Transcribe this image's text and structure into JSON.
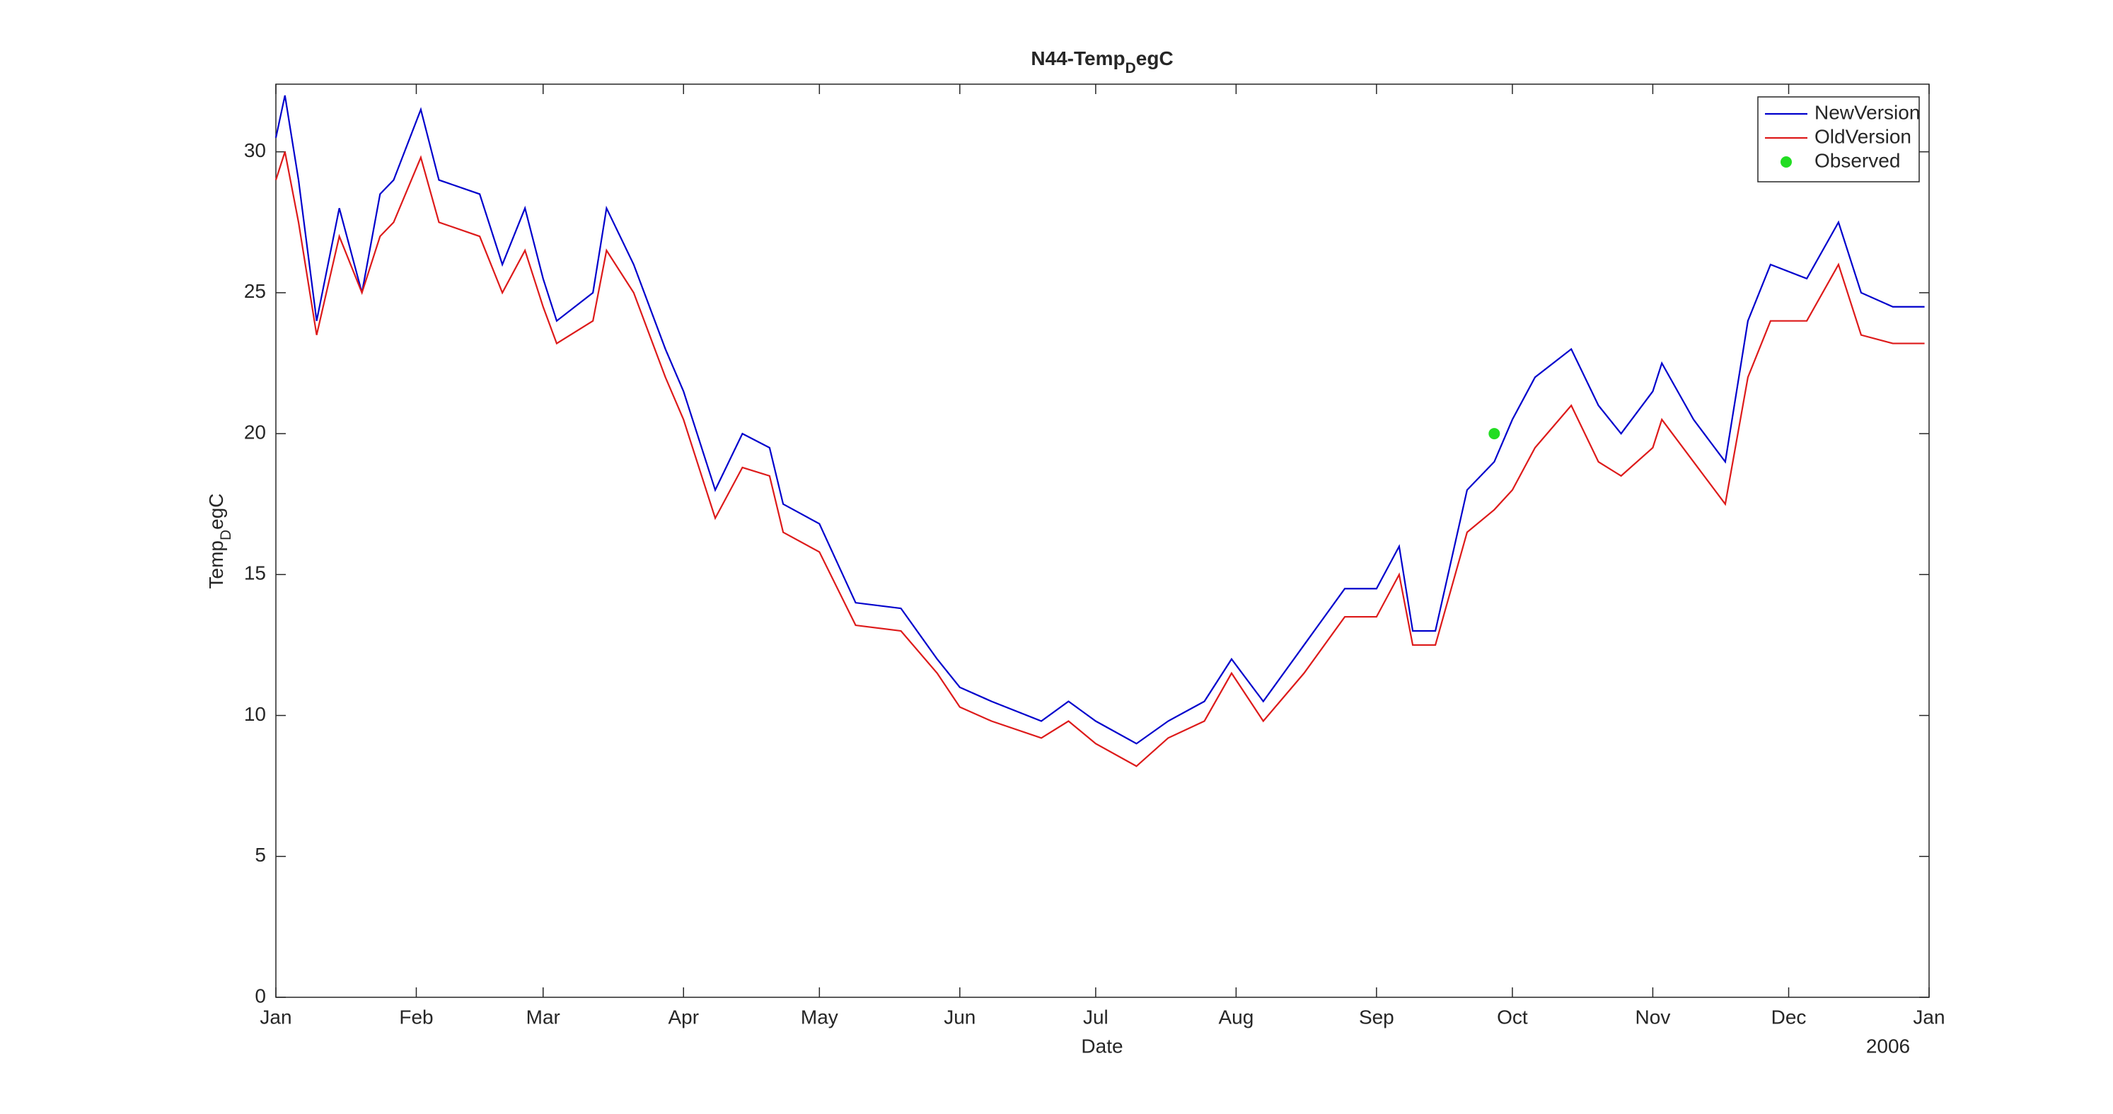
{
  "chart_data": {
    "type": "line",
    "title": [
      "N44-Temp",
      "D",
      "egC"
    ],
    "xlabel": "Date",
    "ylabel": [
      "Temp",
      "D",
      "egC"
    ],
    "annotation": "2006",
    "x": [
      0,
      2,
      5,
      9,
      14,
      19,
      23,
      26,
      32,
      36,
      45,
      50,
      55,
      59,
      62,
      70,
      73,
      79,
      86,
      90,
      97,
      103,
      109,
      112,
      120,
      128,
      138,
      146,
      151,
      158,
      169,
      175,
      181,
      190,
      197,
      205,
      211,
      218,
      227,
      236,
      243,
      248,
      251,
      256,
      263,
      269,
      273,
      278,
      286,
      292,
      297,
      304,
      306,
      313,
      320,
      325,
      330,
      338,
      345,
      350,
      357,
      364
    ],
    "series": [
      {
        "name": "NewVersion",
        "color": "#0000cc",
        "values": [
          30.5,
          32,
          29,
          24,
          28,
          25,
          28.5,
          29,
          31.5,
          29,
          28.5,
          26,
          28,
          25.5,
          24,
          25,
          28,
          26,
          23,
          21.5,
          18,
          20,
          19.5,
          17.5,
          16.8,
          14,
          13.8,
          12,
          11,
          10.5,
          9.8,
          10.5,
          9.8,
          9,
          9.8,
          10.5,
          12,
          10.5,
          12.5,
          14.5,
          14.5,
          16,
          13,
          13,
          18,
          19,
          20.5,
          22,
          23,
          21,
          20,
          21.5,
          22.5,
          20.5,
          19,
          24,
          26,
          25.5,
          27.5,
          25,
          24.5,
          24.5
        ]
      },
      {
        "name": "OldVersion",
        "color": "#dd1a1a",
        "values": [
          29,
          30,
          27.5,
          23.5,
          27,
          25,
          27,
          27.5,
          29.8,
          27.5,
          27,
          25,
          26.5,
          24.5,
          23.2,
          24,
          26.5,
          25,
          22,
          20.5,
          17,
          18.8,
          18.5,
          16.5,
          15.8,
          13.2,
          13,
          11.5,
          10.3,
          9.8,
          9.2,
          9.8,
          9,
          8.2,
          9.2,
          9.8,
          11.5,
          9.8,
          11.5,
          13.5,
          13.5,
          15,
          12.5,
          12.5,
          16.5,
          17.3,
          18,
          19.5,
          21,
          19,
          18.5,
          19.5,
          20.5,
          19,
          17.5,
          22,
          24,
          24,
          26,
          23.5,
          23.2,
          23.2
        ]
      }
    ],
    "observed": {
      "name": "Observed",
      "color": "#22dd22",
      "x": [
        269
      ],
      "values": [
        20
      ]
    },
    "xlim": [
      0,
      365
    ],
    "xticks": [
      {
        "value": 0,
        "label": "Jan"
      },
      {
        "value": 31,
        "label": "Feb"
      },
      {
        "value": 59,
        "label": "Mar"
      },
      {
        "value": 90,
        "label": "Apr"
      },
      {
        "value": 120,
        "label": "May"
      },
      {
        "value": 151,
        "label": "Jun"
      },
      {
        "value": 181,
        "label": "Jul"
      },
      {
        "value": 212,
        "label": "Aug"
      },
      {
        "value": 243,
        "label": "Sep"
      },
      {
        "value": 273,
        "label": "Oct"
      },
      {
        "value": 304,
        "label": "Nov"
      },
      {
        "value": 334,
        "label": "Dec"
      },
      {
        "value": 365,
        "label": "Jan"
      }
    ],
    "ylim": [
      0,
      32.4
    ],
    "yticks": [
      0,
      5,
      10,
      15,
      20,
      25,
      30
    ],
    "grid": false,
    "legend": "top-right"
  }
}
